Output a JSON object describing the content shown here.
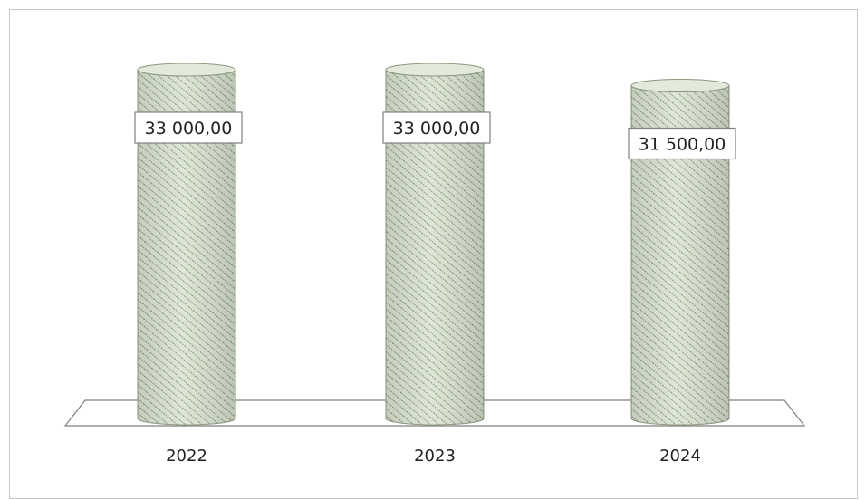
{
  "chart_data": {
    "type": "bar",
    "style": "3d-cylinder",
    "categories": [
      "2022",
      "2023",
      "2024"
    ],
    "values": [
      33000,
      33000,
      31500
    ],
    "data_labels": [
      "33 000,00",
      "33 000,00",
      "31 500,00"
    ],
    "title": "",
    "xlabel": "",
    "ylabel": "",
    "ylim": [
      0,
      33000
    ],
    "grid": false,
    "legend": "none",
    "colors": {
      "cylinder_fill": "#d9e3cf",
      "cylinder_hatch": "#6f8064",
      "cylinder_edge": "#8a9a80",
      "floor_stroke": "#7f7f7f",
      "frame_stroke": "#c6c6c6",
      "label_border": "#7f7f7f"
    }
  }
}
